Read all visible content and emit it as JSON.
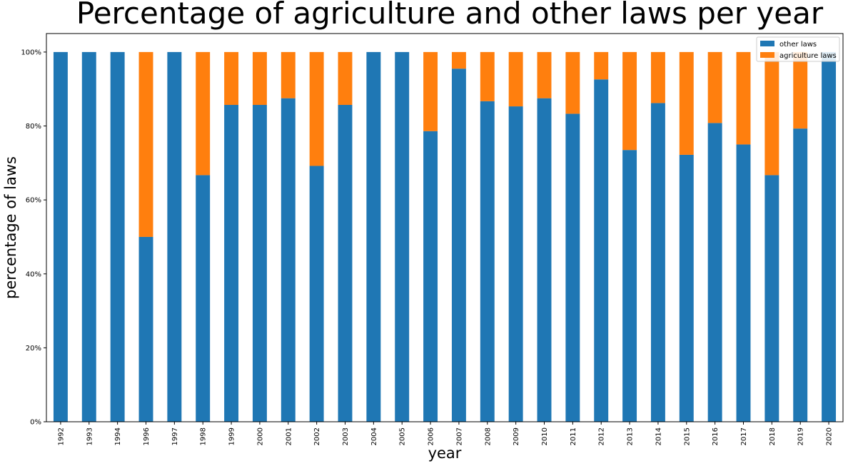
{
  "chart_data": {
    "type": "bar",
    "stacked": true,
    "title": "Percentage of agriculture and other laws per year",
    "xlabel": "year",
    "ylabel": "percentage of laws",
    "ylim": [
      0,
      1.05
    ],
    "yticks": [
      {
        "value": 0,
        "label": "0%"
      },
      {
        "value": 0.2,
        "label": "20%"
      },
      {
        "value": 0.4,
        "label": "40%"
      },
      {
        "value": 0.6,
        "label": "60%"
      },
      {
        "value": 0.8,
        "label": "80%"
      },
      {
        "value": 1.0,
        "label": "100%"
      }
    ],
    "categories": [
      "1992",
      "1993",
      "1994",
      "1996",
      "1997",
      "1998",
      "1999",
      "2000",
      "2001",
      "2002",
      "2003",
      "2004",
      "2005",
      "2006",
      "2007",
      "2008",
      "2009",
      "2010",
      "2011",
      "2012",
      "2013",
      "2014",
      "2015",
      "2016",
      "2017",
      "2018",
      "2019",
      "2020"
    ],
    "series": [
      {
        "name": "other laws",
        "color": "#1f77b4",
        "values": [
          1.0,
          1.0,
          1.0,
          0.5,
          1.0,
          0.667,
          0.857,
          0.857,
          0.875,
          0.692,
          0.857,
          1.0,
          1.0,
          0.786,
          0.955,
          0.867,
          0.853,
          0.875,
          0.833,
          0.926,
          0.735,
          0.862,
          0.722,
          0.808,
          0.75,
          0.667,
          0.793,
          1.0
        ]
      },
      {
        "name": "agriculture laws",
        "color": "#ff7f0e",
        "values": [
          0.0,
          0.0,
          0.0,
          0.5,
          0.0,
          0.333,
          0.143,
          0.143,
          0.125,
          0.308,
          0.143,
          0.0,
          0.0,
          0.214,
          0.045,
          0.133,
          0.147,
          0.125,
          0.167,
          0.074,
          0.265,
          0.138,
          0.278,
          0.192,
          0.25,
          0.333,
          0.207,
          0.0
        ]
      }
    ],
    "legend": "top-right",
    "grid": false
  }
}
